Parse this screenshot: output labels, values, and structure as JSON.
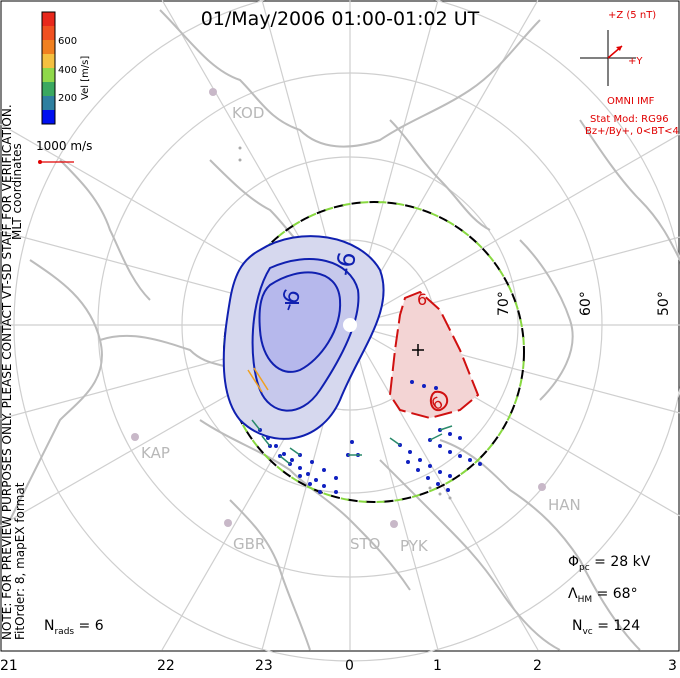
{
  "title": "01/May/2006 01:00-01:02 UT",
  "coord_system": "MLT coordinates",
  "preview_note": "NOTE: FOR PREVIEW PURPOSES ONLY. PLEASE CONTACT VT-SD STAFF FOR VERIFICATION.",
  "fit_note": "FitOrder: 8, mapEX format",
  "vector_scale": "1000 m/s",
  "colorbar": {
    "title": "Vel [m/s]",
    "ticks": [
      "600",
      "400",
      "200"
    ],
    "colors": [
      "#e8281c",
      "#f07820",
      "#f4c040",
      "#8fd84a",
      "#3aa860",
      "#2e7fa0",
      "#2238c8",
      "#0010f0"
    ]
  },
  "imf": {
    "z_label": "+Z (5 nT)",
    "y_label": "+Y",
    "source": "OMNI IMF",
    "model": "Stat Mod: RG96",
    "condition": "Bz+/By+, 0<BT<4"
  },
  "contour_labels": {
    "negative_a": "-6",
    "negative_b": "-6",
    "positive_a": "6",
    "positive_b": "6"
  },
  "lat_labels": [
    "70°",
    "60°",
    "50°"
  ],
  "sites": [
    "KOD",
    "KAP",
    "GBR",
    "STO",
    "PYK",
    "HAN"
  ],
  "stats": {
    "phi_pc_sym": "Φ",
    "phi_pc_sub": "pc",
    "phi_pc_val": " = 28 kV",
    "hm_sym": "Λ",
    "hm_sub": "HM",
    "hm_val": " = 68°",
    "nvc_sym": "N",
    "nvc_sub": "vc",
    "nvc_val": " = 124",
    "nrads_sym": "N",
    "nrads_sub": "rads",
    "nrads_val": " = 6"
  },
  "mlt_ticks": [
    "21",
    "22",
    "23",
    "0",
    "1",
    "2",
    "3"
  ],
  "colors": {
    "neg_contour": "#1020b0",
    "neg_fill": "#c8cce8",
    "pos_contour": "#d01010",
    "pos_fill": "#f0c8c8",
    "grid": "#cccccc",
    "coast": "#bdbdbd",
    "hm_boundary": "#88d840"
  }
}
